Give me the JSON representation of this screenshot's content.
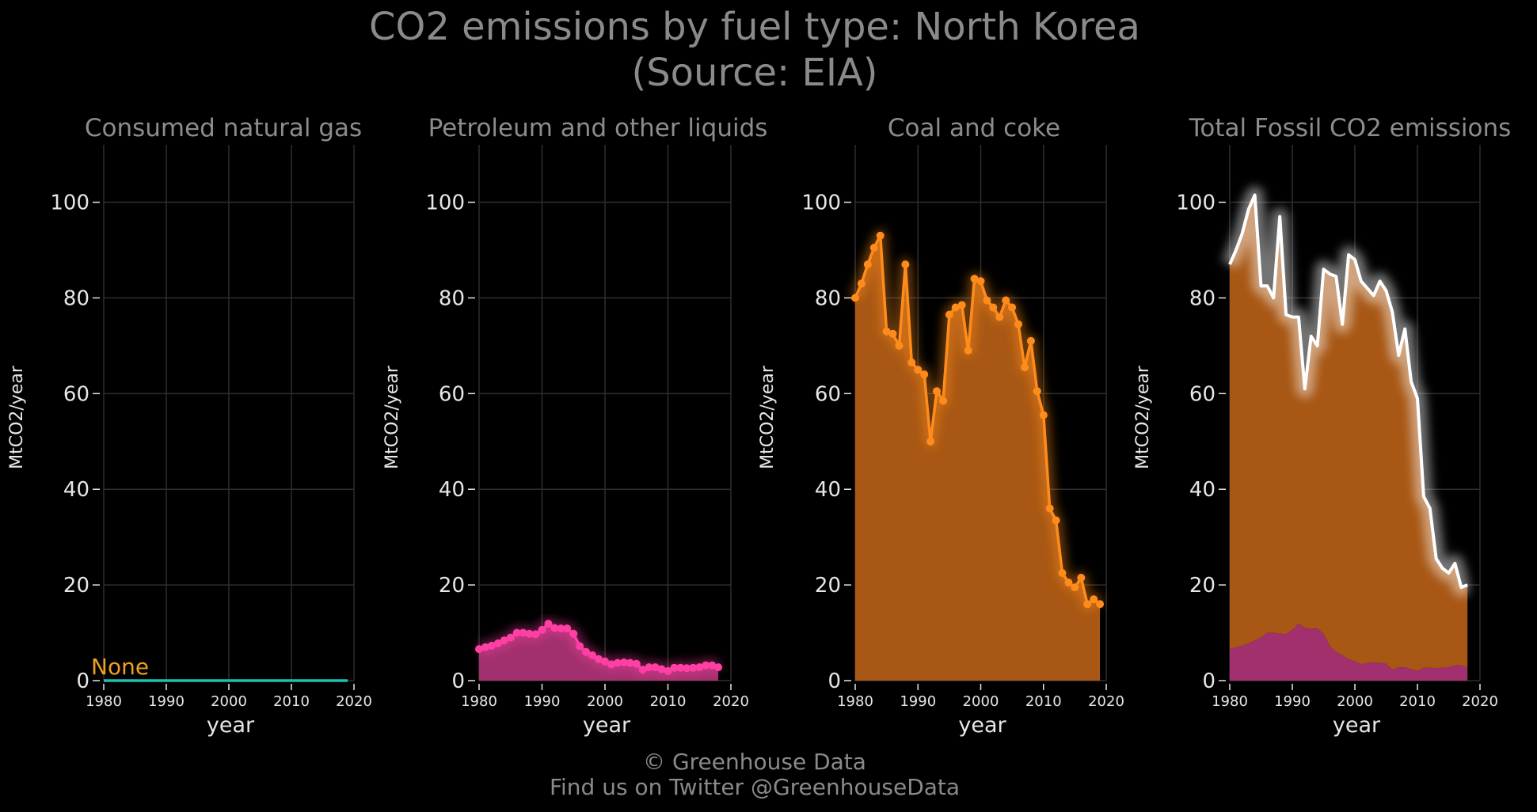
{
  "title": {
    "line1": "CO2 emissions by fuel type: North Korea",
    "line2": "(Source: EIA)"
  },
  "footer": {
    "line1": "© Greenhouse Data",
    "line2": "Find us on Twitter @GreenhouseData"
  },
  "colors": {
    "background": "#000000",
    "grid": "#2e2e2e",
    "gas": "#1fbfb0",
    "petroleum": "#ff3fa4",
    "petroleum_fill": "#a3306e",
    "coal": "#ff8c1a",
    "coal_fill": "#a85714",
    "total": "#ffffff",
    "none_label": "#f0a020"
  },
  "chart_data": [
    {
      "type": "line",
      "title": "Consumed natural gas",
      "xlabel": "year",
      "ylabel": "MtCO2/year",
      "xlim": [
        1980,
        2020
      ],
      "ylim": [
        0,
        112
      ],
      "xticks": [
        "1980",
        "1990",
        "2000",
        "2010",
        "2020"
      ],
      "yticks": [
        "0",
        "20",
        "40",
        "60",
        "80",
        "100"
      ],
      "grid": true,
      "annotation": "None",
      "series": [
        {
          "x": [
            1980,
            2019
          ],
          "y": [
            0,
            0
          ]
        }
      ]
    },
    {
      "type": "area",
      "title": "Petroleum and other liquids",
      "xlabel": "year",
      "ylabel": "MtCO2/year",
      "xlim": [
        1980,
        2020
      ],
      "ylim": [
        0,
        112
      ],
      "xticks": [
        "1980",
        "1990",
        "2000",
        "2010",
        "2020"
      ],
      "yticks": [
        "0",
        "20",
        "40",
        "60",
        "80",
        "100"
      ],
      "grid": true,
      "series": [
        {
          "x": [
            1980,
            1981,
            1982,
            1983,
            1984,
            1985,
            1986,
            1987,
            1988,
            1989,
            1990,
            1991,
            1992,
            1993,
            1994,
            1995,
            1996,
            1997,
            1998,
            1999,
            2000,
            2001,
            2002,
            2003,
            2004,
            2005,
            2006,
            2007,
            2008,
            2009,
            2010,
            2011,
            2012,
            2013,
            2014,
            2015,
            2016,
            2017,
            2018
          ],
          "y": [
            6.6,
            7.0,
            7.3,
            7.8,
            8.4,
            9.0,
            10.0,
            10.0,
            9.8,
            9.7,
            10.6,
            11.9,
            11.0,
            10.9,
            10.9,
            9.8,
            7.2,
            6.0,
            5.3,
            4.5,
            4.0,
            3.4,
            3.7,
            3.8,
            3.7,
            3.5,
            2.3,
            2.8,
            2.8,
            2.4,
            2.0,
            2.7,
            2.7,
            2.6,
            2.7,
            2.8,
            3.2,
            3.2,
            2.8
          ]
        }
      ]
    },
    {
      "type": "area",
      "title": "Coal and coke",
      "xlabel": "year",
      "ylabel": "MtCO2/year",
      "xlim": [
        1980,
        2020
      ],
      "ylim": [
        0,
        112
      ],
      "xticks": [
        "1980",
        "1990",
        "2000",
        "2010",
        "2020"
      ],
      "yticks": [
        "0",
        "20",
        "40",
        "60",
        "80",
        "100"
      ],
      "grid": true,
      "series": [
        {
          "x": [
            1980,
            1981,
            1982,
            1983,
            1984,
            1985,
            1986,
            1987,
            1988,
            1989,
            1990,
            1991,
            1992,
            1993,
            1994,
            1995,
            1996,
            1997,
            1998,
            1999,
            2000,
            2001,
            2002,
            2003,
            2004,
            2005,
            2006,
            2007,
            2008,
            2009,
            2010,
            2011,
            2012,
            2013,
            2014,
            2015,
            2016,
            2017,
            2018,
            2019
          ],
          "y": [
            80,
            83,
            87,
            90.5,
            93,
            73,
            72.5,
            70,
            87,
            66.5,
            65,
            64,
            50,
            60.5,
            58.5,
            76.5,
            78,
            78.5,
            69,
            84,
            83.5,
            79.5,
            78,
            76,
            79.5,
            78,
            74.5,
            65.5,
            71,
            60.5,
            55.5,
            36,
            33.5,
            22.5,
            20.5,
            19.5,
            21.5,
            16,
            17,
            16
          ]
        }
      ]
    },
    {
      "type": "area",
      "title": "Total Fossil CO2 emissions",
      "xlabel": "year",
      "ylabel": "MtCO2/year",
      "xlim": [
        1980,
        2020
      ],
      "ylim": [
        0,
        112
      ],
      "xticks": [
        "1980",
        "1990",
        "2000",
        "2010",
        "2020"
      ],
      "yticks": [
        "0",
        "20",
        "40",
        "60",
        "80",
        "100"
      ],
      "grid": true,
      "series": [
        {
          "x": [
            1980,
            1981,
            1982,
            1983,
            1984,
            1985,
            1986,
            1987,
            1988,
            1989,
            1990,
            1991,
            1992,
            1993,
            1994,
            1995,
            1996,
            1997,
            1998,
            1999,
            2000,
            2001,
            2002,
            2003,
            2004,
            2005,
            2006,
            2007,
            2008,
            2009,
            2010,
            2011,
            2012,
            2013,
            2014,
            2015,
            2016,
            2017,
            2018
          ],
          "y": [
            87,
            90,
            93.5,
            98.5,
            101.5,
            82.5,
            82.5,
            80,
            97,
            76.5,
            76,
            76,
            61,
            72,
            70,
            86,
            85,
            84.5,
            74.5,
            89,
            88,
            83.5,
            82,
            80.5,
            83.5,
            81.5,
            77,
            68,
            73.5,
            62.5,
            59,
            38.5,
            36,
            25.5,
            23.5,
            22.5,
            24.5,
            19.5,
            20
          ]
        }
      ]
    }
  ]
}
